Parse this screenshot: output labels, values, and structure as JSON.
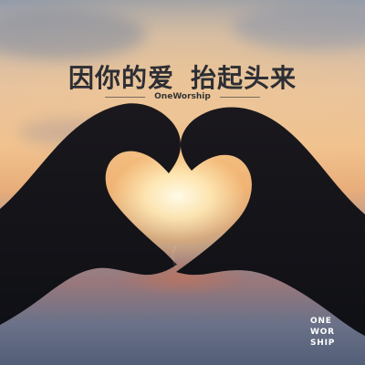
{
  "cover": {
    "title_left": "因你的爱",
    "title_right": "抬起头来",
    "artist": "OneWorship",
    "logo_lines": [
      "ONE",
      "WOR",
      "SHIP"
    ]
  },
  "colors": {
    "title": "#2d2e34",
    "logo": "#ffffff",
    "sunset_glow": "#fff2d6",
    "hand_shadow": "#17161b"
  }
}
